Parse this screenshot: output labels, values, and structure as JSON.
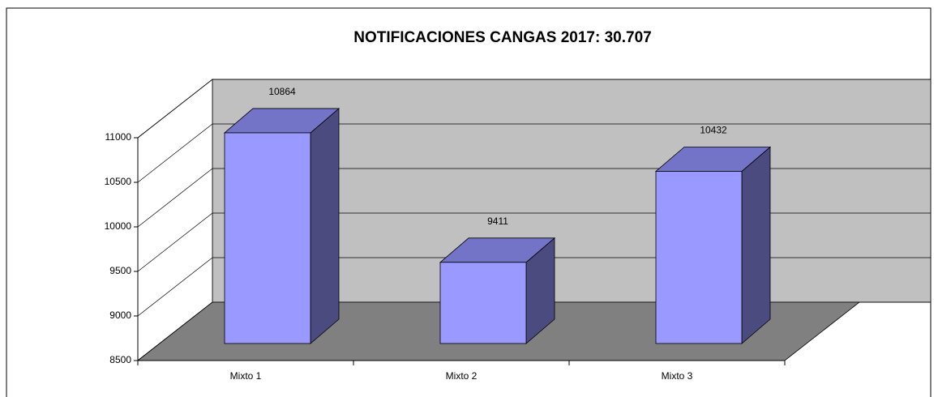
{
  "chart_data": {
    "type": "bar3d",
    "title": "NOTIFICACIONES CANGAS 2017: 30.707",
    "categories": [
      "Mixto 1",
      "Mixto 2",
      "Mixto 3"
    ],
    "values": [
      10864,
      9411,
      10432
    ],
    "color": "#9999ff",
    "top_color": "#7373c8",
    "side_color": "#4b4b80",
    "ylim": [
      8500,
      11000
    ],
    "yticks": [
      8500,
      9000,
      9500,
      10000,
      10500,
      11000
    ],
    "grid": true
  }
}
